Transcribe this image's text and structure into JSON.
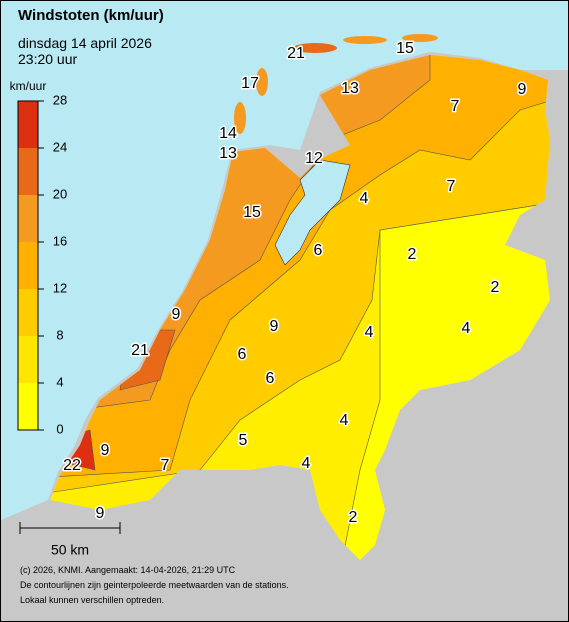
{
  "header": {
    "title": "Windstoten (km/uur)",
    "date": "dinsdag 14 april 2026",
    "time": "23:20 uur"
  },
  "legend": {
    "unit": "km/uur",
    "ticks": [
      0,
      4,
      8,
      12,
      16,
      20,
      24,
      28
    ],
    "colors": [
      "#ffff00",
      "#ffe600",
      "#ffcc00",
      "#ffb000",
      "#f59a20",
      "#e86a18",
      "#dd3010"
    ]
  },
  "stations": [
    21,
    15,
    17,
    13,
    9,
    7,
    14,
    13,
    12,
    7,
    4,
    15,
    6,
    2,
    2,
    9,
    9,
    4,
    4,
    21,
    6,
    6,
    4,
    5,
    9,
    4,
    7,
    22,
    9,
    2
  ],
  "scale": "50 km",
  "footer": [
    "(c) 2026, KNMI. Aangemaakt: 14-04-2026, 21:29 UTC",
    "De contourlijnen zijn geinterpoleerde meetwaarden van de stations.",
    "Lokaal kunnen verschillen optreden."
  ]
}
